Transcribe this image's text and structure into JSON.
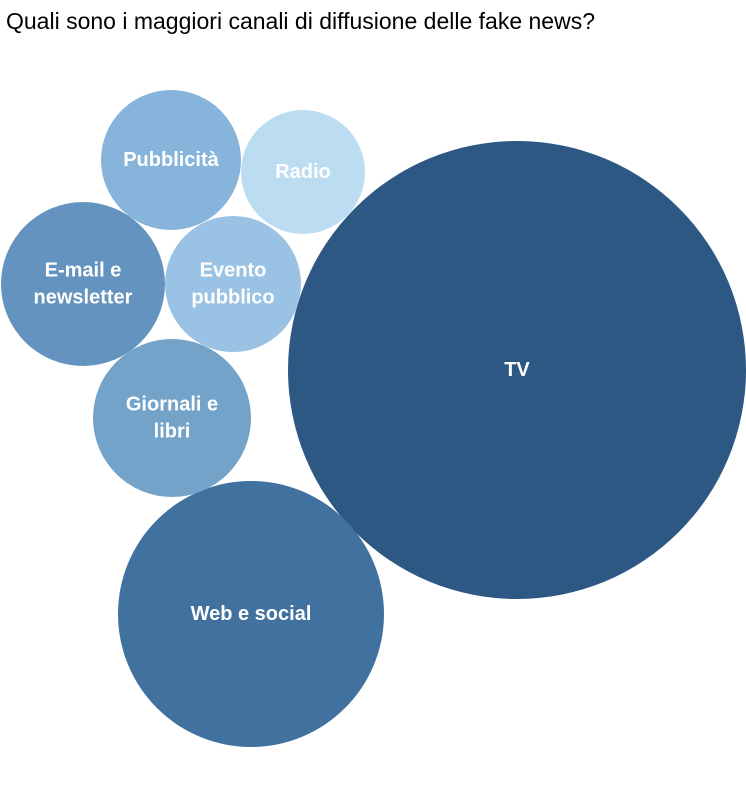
{
  "chart_data": {
    "type": "bubble",
    "title": "Quali sono i maggiori canali di diffusione delle fake news?",
    "bubbles": [
      {
        "id": "tv",
        "label": [
          "TV"
        ],
        "color": "#2e5884"
      },
      {
        "id": "web-social",
        "label": [
          "Web e social"
        ],
        "color": "#41719e"
      },
      {
        "id": "email-newsletter",
        "label": [
          "E-mail e",
          "newsletter"
        ],
        "color": "#6593bf"
      },
      {
        "id": "giornali-libri",
        "label": [
          "Giornali e",
          "libri"
        ],
        "color": "#73a3c9"
      },
      {
        "id": "pubblicita",
        "label": [
          "Pubblicità"
        ],
        "color": "#87b4da"
      },
      {
        "id": "evento-pubblico",
        "label": [
          "Evento",
          "pubblico"
        ],
        "color": "#9ac2e4"
      },
      {
        "id": "radio",
        "label": [
          "Radio"
        ],
        "color": "#bcdcf1"
      }
    ]
  }
}
